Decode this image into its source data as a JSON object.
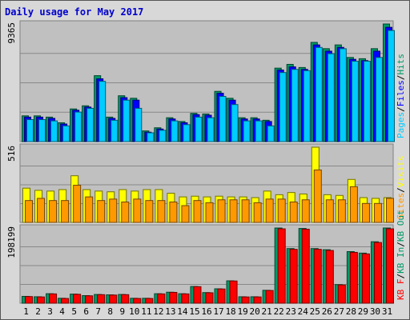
{
  "chart_data": [
    {
      "type": "bar",
      "title": "Daily usage for May 2017",
      "ymax_label": "9365",
      "ylim": [
        0,
        9365
      ],
      "grid": true,
      "categories": [
        "1",
        "2",
        "3",
        "4",
        "5",
        "6",
        "7",
        "8",
        "9",
        "10",
        "11",
        "12",
        "13",
        "14",
        "15",
        "16",
        "17",
        "18",
        "19",
        "20",
        "21",
        "22",
        "23",
        "24",
        "25",
        "26",
        "27",
        "28",
        "29",
        "30",
        "31"
      ],
      "weekend_categories": [
        "6",
        "7",
        "13",
        "14",
        "20",
        "21",
        "27",
        "28"
      ],
      "series": [
        {
          "name": "Hits",
          "color": "#009966",
          "values": [
            2050,
            2050,
            1950,
            1500,
            2600,
            2850,
            5250,
            1950,
            3650,
            3450,
            850,
            1100,
            1900,
            1600,
            2250,
            2200,
            4000,
            3450,
            1900,
            1900,
            1700,
            5850,
            6150,
            5900,
            7900,
            7400,
            7700,
            6700,
            6600,
            7400,
            9365
          ]
        },
        {
          "name": "Files",
          "color": "#0000ff",
          "values": [
            1950,
            1950,
            1850,
            1400,
            2500,
            2750,
            5000,
            1850,
            3500,
            3300,
            750,
            1000,
            1800,
            1500,
            2150,
            2100,
            3850,
            3300,
            1800,
            1800,
            1600,
            5700,
            5950,
            5750,
            7700,
            7200,
            7500,
            6550,
            6450,
            7200,
            9100
          ]
        },
        {
          "name": "Pages",
          "color": "#00ccff",
          "values": [
            1750,
            1750,
            1650,
            1250,
            2350,
            2650,
            4800,
            1700,
            3300,
            2650,
            700,
            900,
            1650,
            1350,
            1950,
            1900,
            3600,
            2950,
            1650,
            1650,
            1250,
            5500,
            5750,
            5650,
            7500,
            7000,
            7400,
            6400,
            6400,
            6700,
            8850
          ]
        }
      ],
      "side_label": [
        "Pages",
        "/",
        "Files",
        "/",
        "Hits"
      ],
      "side_colors": [
        "#00ccff",
        "#000000",
        "#0000ff",
        "#000000",
        "#009966"
      ]
    },
    {
      "type": "bar",
      "ymax_label": "516",
      "ylim": [
        0,
        516
      ],
      "grid": true,
      "categories": [
        "1",
        "2",
        "3",
        "4",
        "5",
        "6",
        "7",
        "8",
        "9",
        "10",
        "11",
        "12",
        "13",
        "14",
        "15",
        "16",
        "17",
        "18",
        "19",
        "20",
        "21",
        "22",
        "23",
        "24",
        "25",
        "26",
        "27",
        "28",
        "29",
        "30",
        "31"
      ],
      "series": [
        {
          "name": "Visits",
          "color": "#ffff00",
          "values": [
            235,
            220,
            215,
            225,
            320,
            225,
            215,
            210,
            225,
            215,
            225,
            225,
            200,
            175,
            180,
            175,
            180,
            175,
            175,
            170,
            215,
            190,
            205,
            195,
            516,
            190,
            185,
            295,
            170,
            165,
            170
          ]
        },
        {
          "name": "Sites",
          "color": "#ff9900",
          "values": [
            150,
            165,
            150,
            150,
            255,
            175,
            150,
            160,
            140,
            160,
            150,
            150,
            140,
            115,
            150,
            135,
            155,
            155,
            155,
            135,
            160,
            160,
            140,
            155,
            360,
            155,
            155,
            245,
            130,
            130,
            165
          ]
        }
      ],
      "side_label": [
        "Sites",
        "/",
        "Visits"
      ],
      "side_colors": [
        "#ff9900",
        "#000000",
        "#ffff00"
      ]
    },
    {
      "type": "bar",
      "ymax_label": "198199",
      "ylim": [
        0,
        198199
      ],
      "grid": true,
      "categories": [
        "1",
        "2",
        "3",
        "4",
        "5",
        "6",
        "7",
        "8",
        "9",
        "10",
        "11",
        "12",
        "13",
        "14",
        "15",
        "16",
        "17",
        "18",
        "19",
        "20",
        "21",
        "22",
        "23",
        "24",
        "25",
        "26",
        "27",
        "28",
        "29",
        "30",
        "31"
      ],
      "series": [
        {
          "name": "KB In",
          "color": "#009966",
          "values": [
            18000,
            17000,
            25000,
            13000,
            24000,
            20000,
            23000,
            22000,
            23000,
            13000,
            13000,
            25000,
            29000,
            25000,
            44000,
            28000,
            38000,
            59000,
            17000,
            17000,
            34000,
            198199,
            144000,
            197000,
            144000,
            141000,
            49000,
            136000,
            132000,
            162000,
            198199
          ]
        },
        {
          "name": "KB F",
          "color": "#ff0000",
          "values": [
            17500,
            16500,
            24500,
            12500,
            23500,
            19500,
            22500,
            21500,
            22500,
            12500,
            12500,
            24500,
            28500,
            24500,
            43500,
            27500,
            37500,
            58500,
            16500,
            16500,
            33500,
            196000,
            142000,
            195000,
            142000,
            139000,
            48000,
            134000,
            130000,
            160000,
            196000
          ]
        }
      ],
      "side_label": [
        "KB F",
        "/",
        "KB In",
        "/",
        "KB Out"
      ],
      "side_colors": [
        "#ff0000",
        "#000000",
        "#009966",
        "#000000",
        "#009966"
      ]
    }
  ]
}
